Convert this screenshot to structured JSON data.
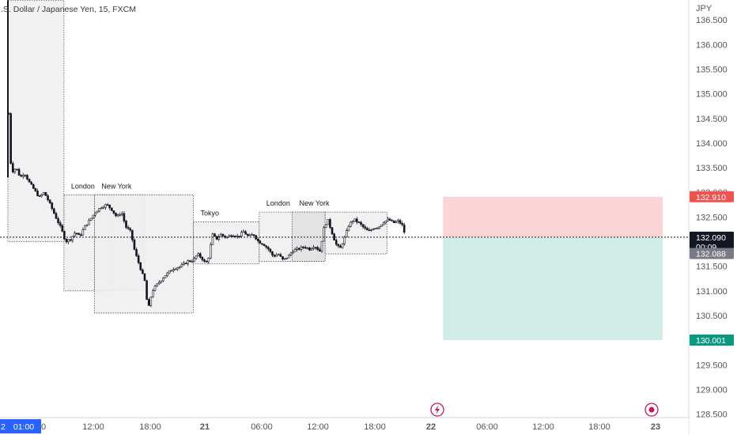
{
  "header": {
    "symbol": ".S. Dollar / Japanese Yen, 15, FXCM",
    "currency": "JPY"
  },
  "chart_data": {
    "type": "candlestick",
    "title": ".S. Dollar / Japanese Yen, 15, FXCM",
    "ylabel": "JPY",
    "ylim": [
      128.3,
      136.9
    ],
    "y_ticks": [
      "136.500",
      "136.000",
      "135.500",
      "135.000",
      "134.500",
      "134.000",
      "133.500",
      "133.000",
      "132.500",
      "132.000",
      "131.500",
      "131.000",
      "130.500",
      "130.000",
      "129.500",
      "129.000",
      "128.500"
    ],
    "x_ticks": [
      {
        "label": "2",
        "x": 0.0
      },
      {
        "label": "01:00",
        "x": 1.0
      },
      {
        "label": "0",
        "x": 2.0
      },
      {
        "label": "12:00",
        "x": 12.0
      },
      {
        "label": "18:00",
        "x": 18.0
      },
      {
        "label": "21",
        "x": 24.0
      },
      {
        "label": "06:00",
        "x": 30.0
      },
      {
        "label": "12:00",
        "x": 36.0
      },
      {
        "label": "18:00",
        "x": 42.0
      },
      {
        "label": "22",
        "x": 48.0
      },
      {
        "label": "06:00",
        "x": 54.0
      },
      {
        "label": "12:00",
        "x": 60.0
      },
      {
        "label": "18:00",
        "x": 66.0
      },
      {
        "label": "23",
        "x": 72.0
      }
    ],
    "time_cursor_label": "01:00",
    "price_path": [
      [
        0.0,
        136.9
      ],
      [
        0.1,
        134.6
      ],
      [
        0.4,
        133.4
      ],
      [
        1.0,
        133.5
      ],
      [
        1.5,
        133.3
      ],
      [
        2.0,
        133.4
      ],
      [
        2.6,
        133.2
      ],
      [
        3.2,
        133.05
      ],
      [
        3.8,
        132.9
      ],
      [
        4.4,
        133.0
      ],
      [
        5.0,
        132.8
      ],
      [
        5.8,
        132.5
      ],
      [
        6.5,
        132.25
      ],
      [
        7.0,
        132.0
      ],
      [
        7.6,
        132.05
      ],
      [
        8.2,
        132.2
      ],
      [
        8.7,
        132.1
      ],
      [
        9.3,
        132.3
      ],
      [
        10.0,
        132.45
      ],
      [
        10.6,
        132.6
      ],
      [
        11.3,
        132.7
      ],
      [
        12.0,
        132.75
      ],
      [
        12.6,
        132.65
      ],
      [
        13.2,
        132.5
      ],
      [
        13.8,
        132.6
      ],
      [
        14.3,
        132.3
      ],
      [
        14.9,
        132.2
      ],
      [
        15.4,
        131.8
      ],
      [
        16.0,
        131.5
      ],
      [
        16.6,
        131.2
      ],
      [
        17.0,
        130.6
      ],
      [
        17.5,
        131.0
      ],
      [
        18.2,
        131.15
      ],
      [
        19.0,
        131.3
      ],
      [
        20.0,
        131.45
      ],
      [
        21.0,
        131.5
      ],
      [
        21.8,
        131.6
      ],
      [
        22.5,
        131.62
      ],
      [
        23.0,
        131.75
      ],
      [
        23.6,
        131.65
      ],
      [
        24.0,
        131.55
      ],
      [
        24.4,
        131.7
      ],
      [
        24.8,
        132.15
      ],
      [
        25.3,
        132.05
      ],
      [
        25.8,
        132.15
      ],
      [
        26.5,
        132.08
      ],
      [
        27.2,
        132.15
      ],
      [
        27.9,
        132.1
      ],
      [
        28.6,
        132.2
      ],
      [
        29.2,
        132.1
      ],
      [
        29.8,
        132.15
      ],
      [
        30.4,
        132.0
      ],
      [
        31.0,
        131.95
      ],
      [
        31.6,
        131.85
      ],
      [
        32.2,
        131.7
      ],
      [
        32.8,
        131.75
      ],
      [
        33.4,
        131.62
      ],
      [
        34.0,
        131.7
      ],
      [
        34.6,
        131.82
      ],
      [
        35.3,
        131.85
      ],
      [
        36.0,
        131.9
      ],
      [
        36.6,
        131.85
      ],
      [
        37.2,
        131.92
      ],
      [
        37.9,
        131.8
      ],
      [
        38.3,
        132.25
      ],
      [
        38.8,
        132.45
      ],
      [
        39.3,
        132.2
      ],
      [
        39.8,
        131.95
      ],
      [
        40.3,
        131.85
      ],
      [
        40.9,
        132.1
      ],
      [
        41.4,
        132.35
      ],
      [
        42.0,
        132.45
      ],
      [
        42.6,
        132.38
      ],
      [
        43.2,
        132.28
      ],
      [
        43.8,
        132.2
      ],
      [
        44.4,
        132.28
      ],
      [
        45.0,
        132.3
      ],
      [
        45.6,
        132.4
      ],
      [
        46.2,
        132.45
      ],
      [
        46.8,
        132.38
      ],
      [
        47.4,
        132.42
      ],
      [
        48.0,
        132.3
      ],
      [
        48.2,
        132.09
      ]
    ],
    "sessions": [
      {
        "label": "London",
        "x0": 6.8,
        "x1": 12.5,
        "y_top": 132.95,
        "y_bottom": 131.0
      },
      {
        "label": "New York",
        "x0": 10.5,
        "x1": 16.6,
        "y_top": 132.95,
        "y_bottom": 131.0
      },
      {
        "label": "",
        "x0": 0.0,
        "x1": 6.8,
        "y_top": 136.9,
        "y_bottom": 132.0
      },
      {
        "label": "",
        "x0": 10.5,
        "x1": 22.5,
        "y_top": 132.95,
        "y_bottom": 130.55
      },
      {
        "label": "Tokyo",
        "x0": 22.5,
        "x1": 30.5,
        "y_top": 132.4,
        "y_bottom": 131.55
      },
      {
        "label": "London",
        "x0": 30.5,
        "x1": 38.5,
        "y_top": 132.6,
        "y_bottom": 131.6
      },
      {
        "label": "New York",
        "x0": 34.5,
        "x1": 38.5,
        "y_top": 132.6,
        "y_bottom": 131.6
      },
      {
        "label": "",
        "x0": 38.5,
        "x1": 46.0,
        "y_top": 132.6,
        "y_bottom": 131.75
      }
    ],
    "position": {
      "entry_start_x": 46.0,
      "entry_end_x": 70.0,
      "stop_price": 132.91,
      "entry_price": 132.09,
      "target_price": 130.001
    },
    "price_labels": [
      {
        "value": "132.910",
        "price": 132.91,
        "color": "#ef5350"
      },
      {
        "value": "132.090",
        "price": 132.09,
        "color": "#131722",
        "extra": "00:09"
      },
      {
        "value": "132.088",
        "price": 131.76,
        "color": "#787b86"
      },
      {
        "value": "130.001",
        "price": 130.001,
        "color": "#089981"
      }
    ],
    "colors": {
      "stop_zone": "#fad4d6",
      "target_zone": "#d1ece6",
      "session_fill": "#efefef",
      "session_fill_dark": "#e0e0e0",
      "price_line": "#131722",
      "candle": "#131722",
      "marker": "#c2185b"
    }
  }
}
